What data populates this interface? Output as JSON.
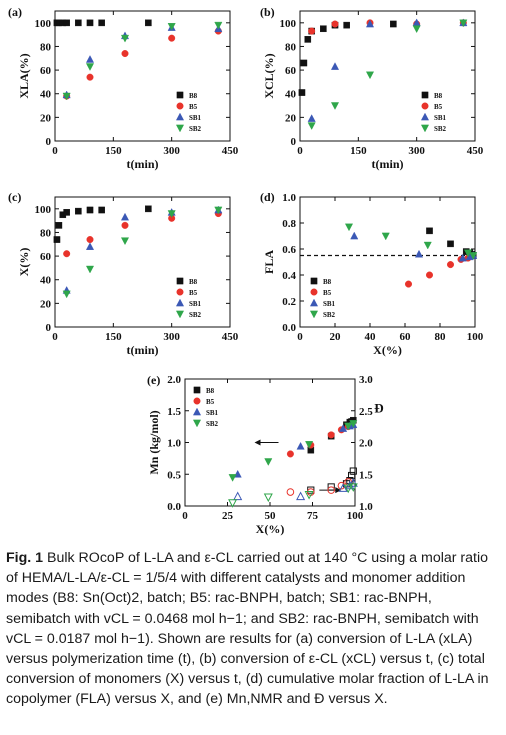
{
  "colors": {
    "B8": "#111111",
    "B5": "#e8332b",
    "SB1": "#3b58b5",
    "SB2": "#2fa64a"
  },
  "marker_shapes": {
    "B8": "square",
    "B5": "circle",
    "SB1": "triangle-up",
    "SB2": "triangle-down"
  },
  "chart_data": [
    {
      "id": "a",
      "type": "scatter",
      "panel_label": "(a)",
      "xlabel": "t(min)",
      "ylabel": "XLA(%)",
      "xlim": [
        0,
        450
      ],
      "ylim": [
        0,
        110
      ],
      "xticks": [
        0,
        150,
        300,
        450
      ],
      "yticks": [
        0,
        20,
        40,
        60,
        80,
        100
      ],
      "legend_position": "bottom-right",
      "series": [
        {
          "name": "B8",
          "x": [
            5,
            10,
            20,
            30,
            60,
            90,
            120,
            240
          ],
          "y": [
            100,
            100,
            100,
            100,
            100,
            100,
            100,
            100
          ]
        },
        {
          "name": "B5",
          "x": [
            30,
            90,
            180,
            300,
            420
          ],
          "y": [
            38,
            54,
            74,
            87,
            93
          ]
        },
        {
          "name": "SB1",
          "x": [
            30,
            90,
            180,
            300,
            420
          ],
          "y": [
            39,
            69,
            89,
            96,
            95
          ]
        },
        {
          "name": "SB2",
          "x": [
            30,
            90,
            180,
            300,
            420
          ],
          "y": [
            38,
            63,
            87,
            97,
            98
          ]
        }
      ]
    },
    {
      "id": "b",
      "type": "scatter",
      "panel_label": "(b)",
      "xlabel": "t(min)",
      "ylabel": "XCL(%)",
      "xlim": [
        0,
        450
      ],
      "ylim": [
        0,
        110
      ],
      "xticks": [
        0,
        150,
        300,
        450
      ],
      "yticks": [
        0,
        20,
        40,
        60,
        80,
        100
      ],
      "legend_position": "bottom-right",
      "series": [
        {
          "name": "B8",
          "x": [
            5,
            10,
            20,
            30,
            60,
            90,
            120,
            240
          ],
          "y": [
            41,
            66,
            86,
            93,
            95,
            98,
            98,
            99
          ]
        },
        {
          "name": "B5",
          "x": [
            30,
            90,
            180,
            300,
            420
          ],
          "y": [
            93,
            99,
            100,
            99,
            100
          ]
        },
        {
          "name": "SB1",
          "x": [
            30,
            90,
            180,
            300,
            420
          ],
          "y": [
            19,
            63,
            99,
            100,
            100
          ]
        },
        {
          "name": "SB2",
          "x": [
            30,
            90,
            180,
            300,
            420
          ],
          "y": [
            13,
            30,
            56,
            95,
            100
          ]
        }
      ]
    },
    {
      "id": "c",
      "type": "scatter",
      "panel_label": "(c)",
      "xlabel": "t(min)",
      "ylabel": "X(%)",
      "xlim": [
        0,
        450
      ],
      "ylim": [
        0,
        110
      ],
      "xticks": [
        0,
        150,
        300,
        450
      ],
      "yticks": [
        0,
        20,
        40,
        60,
        80,
        100
      ],
      "legend_position": "bottom-right",
      "series": [
        {
          "name": "B8",
          "x": [
            5,
            10,
            20,
            30,
            60,
            90,
            120,
            240
          ],
          "y": [
            74,
            86,
            95,
            97,
            98,
            99,
            99,
            100
          ]
        },
        {
          "name": "B5",
          "x": [
            30,
            90,
            180,
            300,
            420
          ],
          "y": [
            62,
            74,
            86,
            92,
            96
          ]
        },
        {
          "name": "SB1",
          "x": [
            30,
            90,
            180,
            300,
            420
          ],
          "y": [
            31,
            68,
            93,
            97,
            99
          ]
        },
        {
          "name": "SB2",
          "x": [
            30,
            90,
            180,
            300,
            420
          ],
          "y": [
            28,
            49,
            73,
            96,
            99
          ]
        }
      ]
    },
    {
      "id": "d",
      "type": "scatter",
      "panel_label": "(d)",
      "xlabel": "X(%)",
      "ylabel": "FLA",
      "xlim": [
        0,
        100
      ],
      "ylim": [
        0,
        1.0
      ],
      "xticks": [
        0,
        20,
        40,
        60,
        80,
        100
      ],
      "yticks": [
        0.0,
        0.2,
        0.4,
        0.6,
        0.8,
        1.0
      ],
      "legend_position": "bottom-left",
      "reference_line": {
        "y": 0.55,
        "style": "dashed"
      },
      "series": [
        {
          "name": "B8",
          "x": [
            74,
            86,
            95,
            97,
            98,
            99
          ],
          "y": [
            0.74,
            0.64,
            0.58,
            0.57,
            0.56,
            0.55
          ]
        },
        {
          "name": "B5",
          "x": [
            62,
            74,
            86,
            92,
            96
          ],
          "y": [
            0.33,
            0.4,
            0.48,
            0.52,
            0.53
          ]
        },
        {
          "name": "SB1",
          "x": [
            31,
            68,
            93,
            97,
            99
          ],
          "y": [
            0.7,
            0.56,
            0.53,
            0.54,
            0.55
          ]
        },
        {
          "name": "SB2",
          "x": [
            28,
            49,
            73,
            96,
            99
          ],
          "y": [
            0.77,
            0.7,
            0.63,
            0.57,
            0.55
          ]
        }
      ]
    },
    {
      "id": "e",
      "type": "scatter",
      "panel_label": "(e)",
      "xlabel": "X(%)",
      "ylabel": "Mn (kg/mol)",
      "y2label": "Đ",
      "xlim": [
        0,
        100
      ],
      "ylim": [
        0.0,
        2.0
      ],
      "y2lim": [
        1.0,
        3.0
      ],
      "xticks": [
        0,
        25,
        50,
        75,
        100
      ],
      "yticks": [
        0.0,
        0.5,
        1.0,
        1.5,
        2.0
      ],
      "y2ticks": [
        1.0,
        1.5,
        2.0,
        2.5,
        3.0
      ],
      "legend_position": "top-left",
      "series": [
        {
          "name": "B8",
          "axis": "left",
          "marker": "filled",
          "x": [
            74,
            86,
            95,
            97,
            98,
            99
          ],
          "y": [
            0.88,
            1.1,
            1.28,
            1.32,
            1.33,
            1.35
          ]
        },
        {
          "name": "B5",
          "axis": "left",
          "marker": "filled",
          "x": [
            62,
            74,
            86,
            92,
            96
          ],
          "y": [
            0.82,
            0.96,
            1.12,
            1.2,
            1.25
          ]
        },
        {
          "name": "SB1",
          "axis": "left",
          "marker": "filled",
          "x": [
            31,
            68,
            93,
            97,
            99
          ],
          "y": [
            0.5,
            0.94,
            1.22,
            1.26,
            1.28
          ]
        },
        {
          "name": "SB2",
          "axis": "left",
          "marker": "filled",
          "x": [
            28,
            49,
            73,
            96,
            99
          ],
          "y": [
            0.45,
            0.7,
            0.97,
            1.26,
            1.3
          ]
        },
        {
          "name": "B8",
          "axis": "right",
          "marker": "open",
          "x": [
            74,
            86,
            95,
            97,
            98,
            99
          ],
          "y": [
            1.25,
            1.3,
            1.35,
            1.4,
            1.48,
            1.55
          ]
        },
        {
          "name": "B5",
          "axis": "right",
          "marker": "open",
          "x": [
            62,
            74,
            86,
            92,
            96
          ],
          "y": [
            1.22,
            1.22,
            1.25,
            1.32,
            1.38
          ]
        },
        {
          "name": "SB1",
          "axis": "right",
          "marker": "open",
          "x": [
            31,
            68,
            93,
            97,
            99
          ],
          "y": [
            1.15,
            1.15,
            1.28,
            1.32,
            1.36
          ]
        },
        {
          "name": "SB2",
          "axis": "right",
          "marker": "open",
          "x": [
            28,
            49,
            73,
            96,
            99
          ],
          "y": [
            1.05,
            1.14,
            1.18,
            1.28,
            1.3
          ]
        }
      ]
    }
  ],
  "caption": {
    "label": "Fig. 1",
    "text": "Bulk ROcoP of L-LA and ε-CL carried out at 140 °C using a molar ratio of HEMA/L-LA/ε-CL = 1/5/4 with different catalysts and monomer addition modes (B8: Sn(Oct)2, batch; B5: rac-BNPH, batch; SB1: rac-BNPH, semibatch with vCL = 0.0468 mol h−1; and SB2: rac-BNPH, semibatch with vCL = 0.0187 mol h−1). Shown are results for (a) conversion of L-LA (xLA) versus polymerization time (t), (b) conversion of ε-CL (xCL) versus t, (c) total conversion of monomers (X) versus t, (d) cumulative molar fraction of L-LA in copolymer (FLA) versus X, and (e) Mn,NMR and Đ versus X."
  }
}
